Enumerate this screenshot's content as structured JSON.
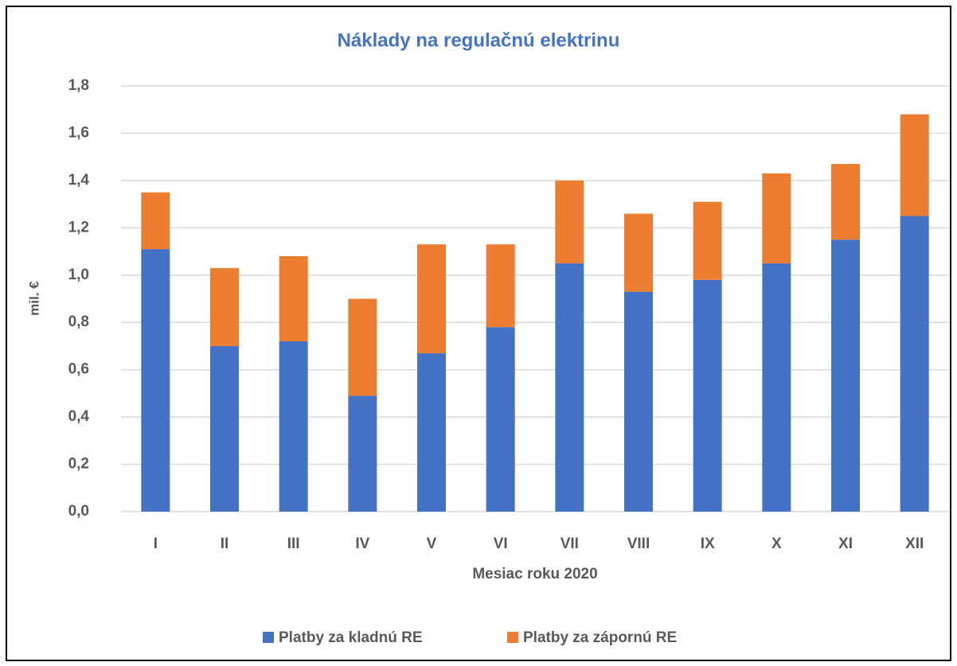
{
  "chart_data": {
    "type": "stacked_bar",
    "title": "Náklady na regulačnú elektrinu",
    "x_label": "Mesiac roku 2020",
    "y_label": "mil. €",
    "categories": [
      "I",
      "II",
      "III",
      "IV",
      "V",
      "VI",
      "VII",
      "VIII",
      "IX",
      "X",
      "XI",
      "XII"
    ],
    "series": [
      {
        "name": "Platby za kladnú RE",
        "color": "#4472c4",
        "values": [
          1.11,
          0.7,
          0.72,
          0.49,
          0.67,
          0.78,
          1.05,
          0.93,
          0.98,
          1.05,
          1.15,
          1.25
        ]
      },
      {
        "name": "Platby za zápornú RE",
        "color": "#ed7d31",
        "values": [
          0.24,
          0.33,
          0.36,
          0.41,
          0.46,
          0.35,
          0.35,
          0.33,
          0.33,
          0.38,
          0.32,
          0.43
        ]
      }
    ],
    "ylim": [
      0,
      1.8
    ],
    "yticks": [
      {
        "value": 0,
        "label": "0,0"
      },
      {
        "value": 0.2,
        "label": "0,2"
      },
      {
        "value": 0.4,
        "label": "0,4"
      },
      {
        "value": 0.6,
        "label": "0,6"
      },
      {
        "value": 0.8,
        "label": "0,8"
      },
      {
        "value": 1.0,
        "label": "1,0"
      },
      {
        "value": 1.2,
        "label": "1,2"
      },
      {
        "value": 1.4,
        "label": "1,4"
      },
      {
        "value": 1.6,
        "label": "1,6"
      },
      {
        "value": 1.8,
        "label": "1,8"
      }
    ],
    "grid": true,
    "legend": "bottom"
  }
}
